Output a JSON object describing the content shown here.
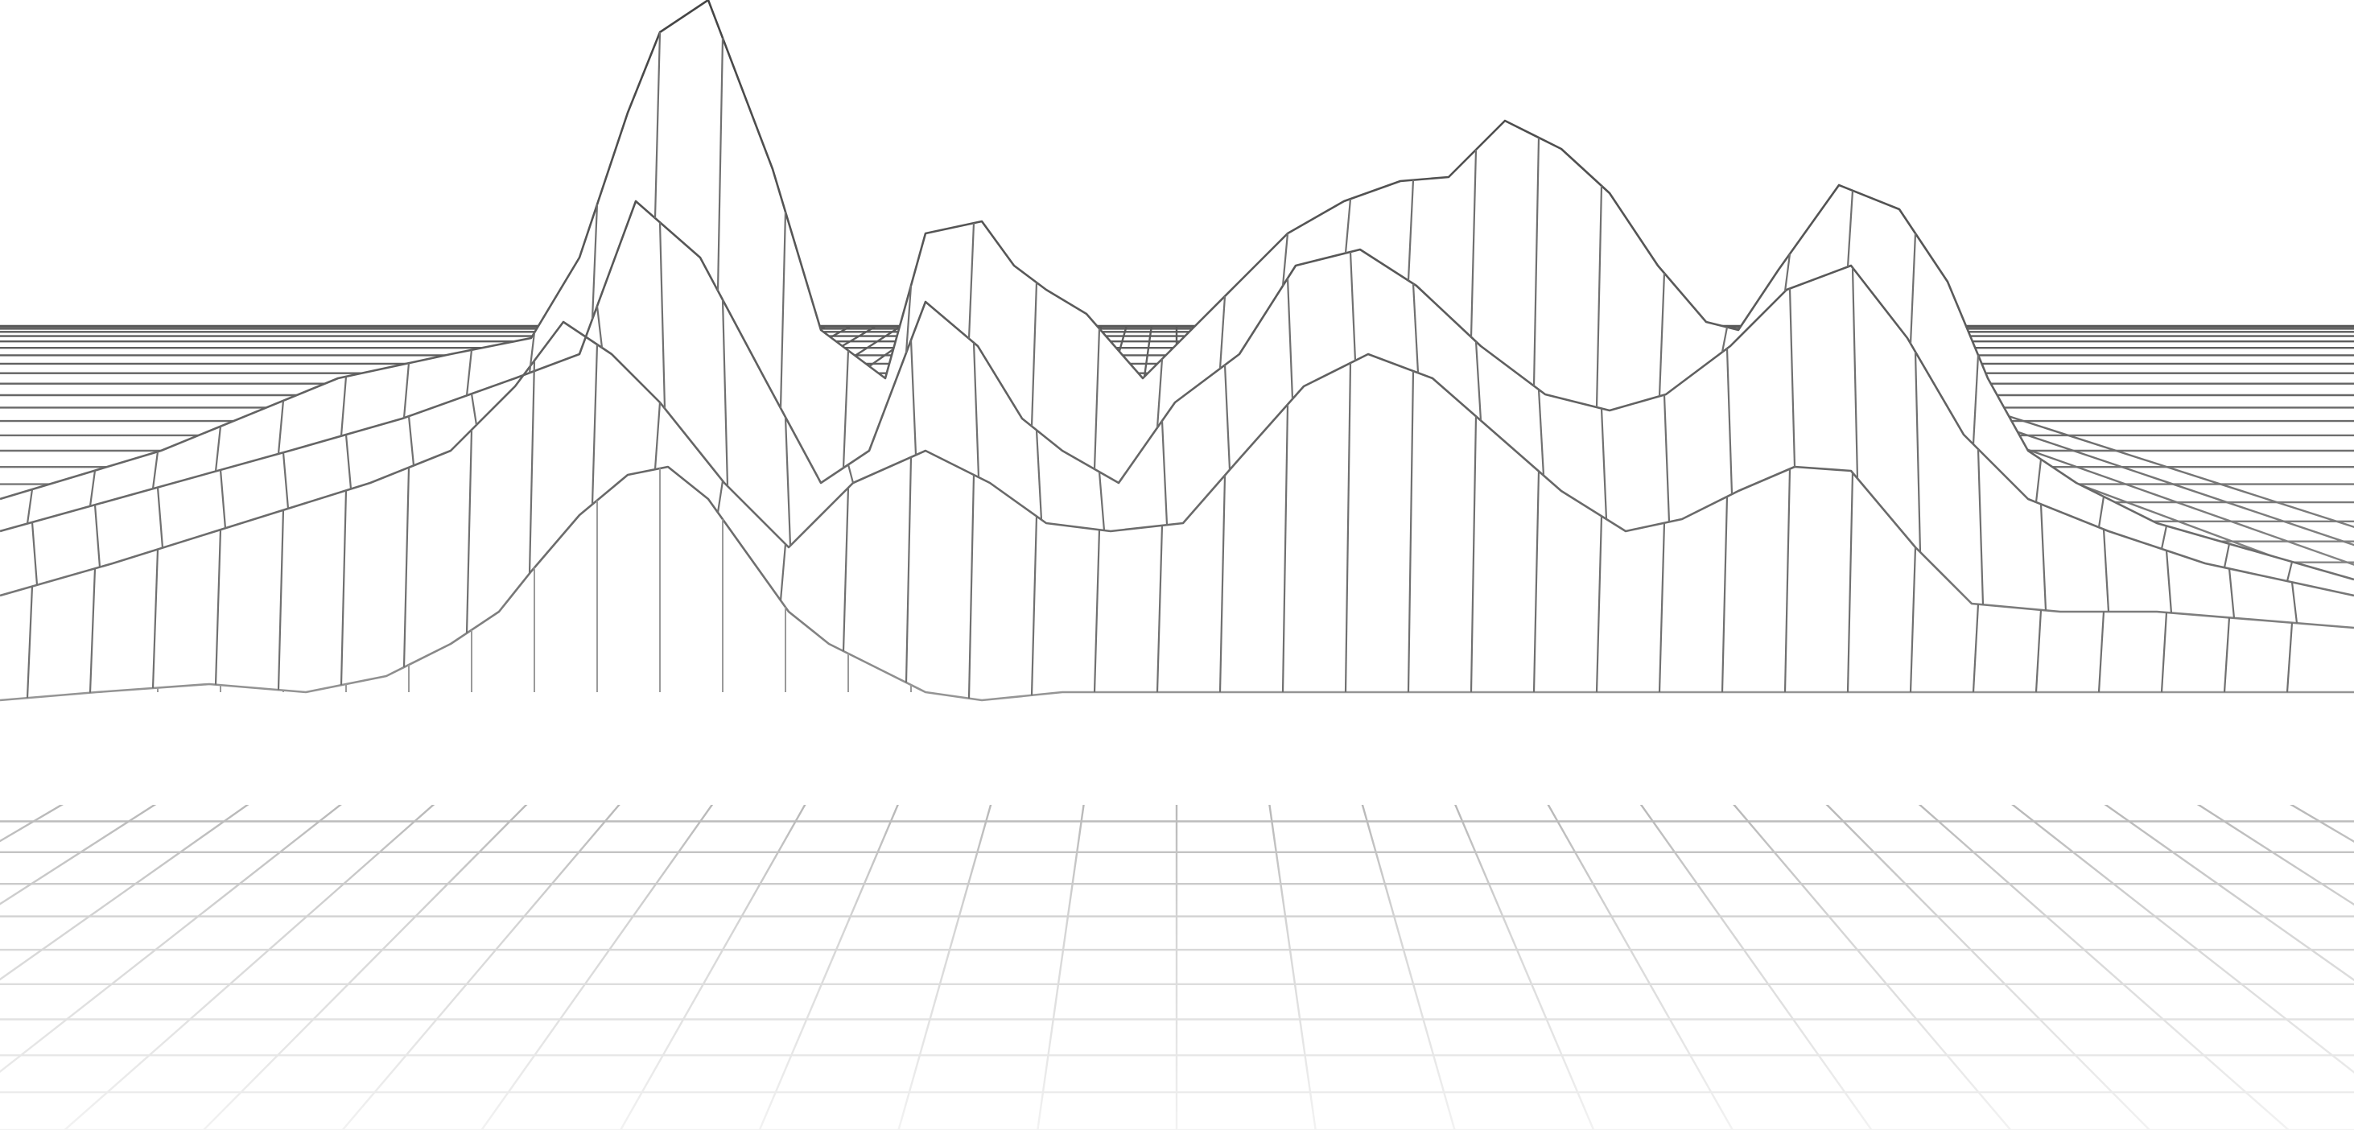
{
  "scene": {
    "subject": "wireframe-terrain",
    "colors": {
      "background": "#ffffff",
      "line_dark": "#4a4a4a",
      "line_mid": "#7a7a7a",
      "line_light": "#c8c8c8",
      "line_faint": "#ececec"
    }
  }
}
